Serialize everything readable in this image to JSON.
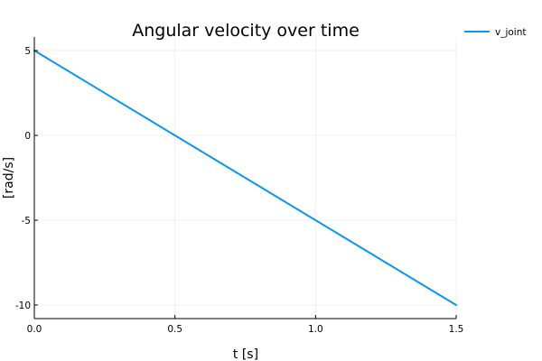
{
  "chart_data": {
    "type": "line",
    "title": "Angular velocity over time",
    "xlabel": "t [s]",
    "ylabel": "[rad/s]",
    "xlim": [
      0.0,
      1.5
    ],
    "ylim": [
      -10.8,
      5.8
    ],
    "x_ticks": [
      0.0,
      0.5,
      1.0,
      1.5
    ],
    "x_tick_labels": [
      "0.0",
      "0.5",
      "1.0",
      "1.5"
    ],
    "y_ticks": [
      5,
      0,
      -5,
      -10
    ],
    "y_tick_labels": [
      "5",
      "0",
      "-5",
      "-10"
    ],
    "grid": true,
    "legend_position": "top-right outside",
    "series": [
      {
        "name": "v_joint",
        "color": "#0a97f0",
        "x": [
          0.0,
          1.5
        ],
        "y": [
          5.0,
          -10.0
        ]
      }
    ]
  }
}
